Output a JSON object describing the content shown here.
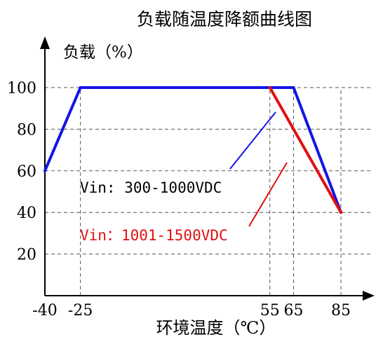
{
  "chart_data": {
    "type": "line",
    "title": "负载随温度降额曲线图",
    "ylabel": "负载（%）",
    "xlabel": "环境温度（℃）",
    "xlim": [
      -40,
      85
    ],
    "ylim": [
      0,
      100
    ],
    "x_ticks": [
      -40,
      -25,
      55,
      65,
      85
    ],
    "x_tick_labels": [
      "-40",
      "-25",
      "55",
      "65",
      "85"
    ],
    "y_ticks": [
      20,
      40,
      60,
      80,
      100
    ],
    "y_tick_labels": [
      "20",
      "40",
      "60",
      "80",
      "100"
    ],
    "grid": true,
    "colors": {
      "axis": "#000000",
      "grid": "#555555",
      "series1": "#1414e6",
      "series2": "#e01010",
      "text": "#000000"
    },
    "series": [
      {
        "name": "Vin: 300-1000VDC",
        "color": "#1414e6",
        "points": [
          [
            -40,
            60
          ],
          [
            -25,
            100
          ],
          [
            65,
            100
          ],
          [
            85,
            40
          ]
        ]
      },
      {
        "name": "Vin：1001-1500VDC",
        "color": "#e01010",
        "points": [
          [
            55,
            100
          ],
          [
            85,
            40
          ]
        ]
      }
    ],
    "annotations": [
      {
        "text": "Vin: 300-1000VDC",
        "color": "#000000",
        "series": 0
      },
      {
        "text": "Vin：1001-1500VDC",
        "color": "#e01010",
        "series": 1
      }
    ]
  }
}
